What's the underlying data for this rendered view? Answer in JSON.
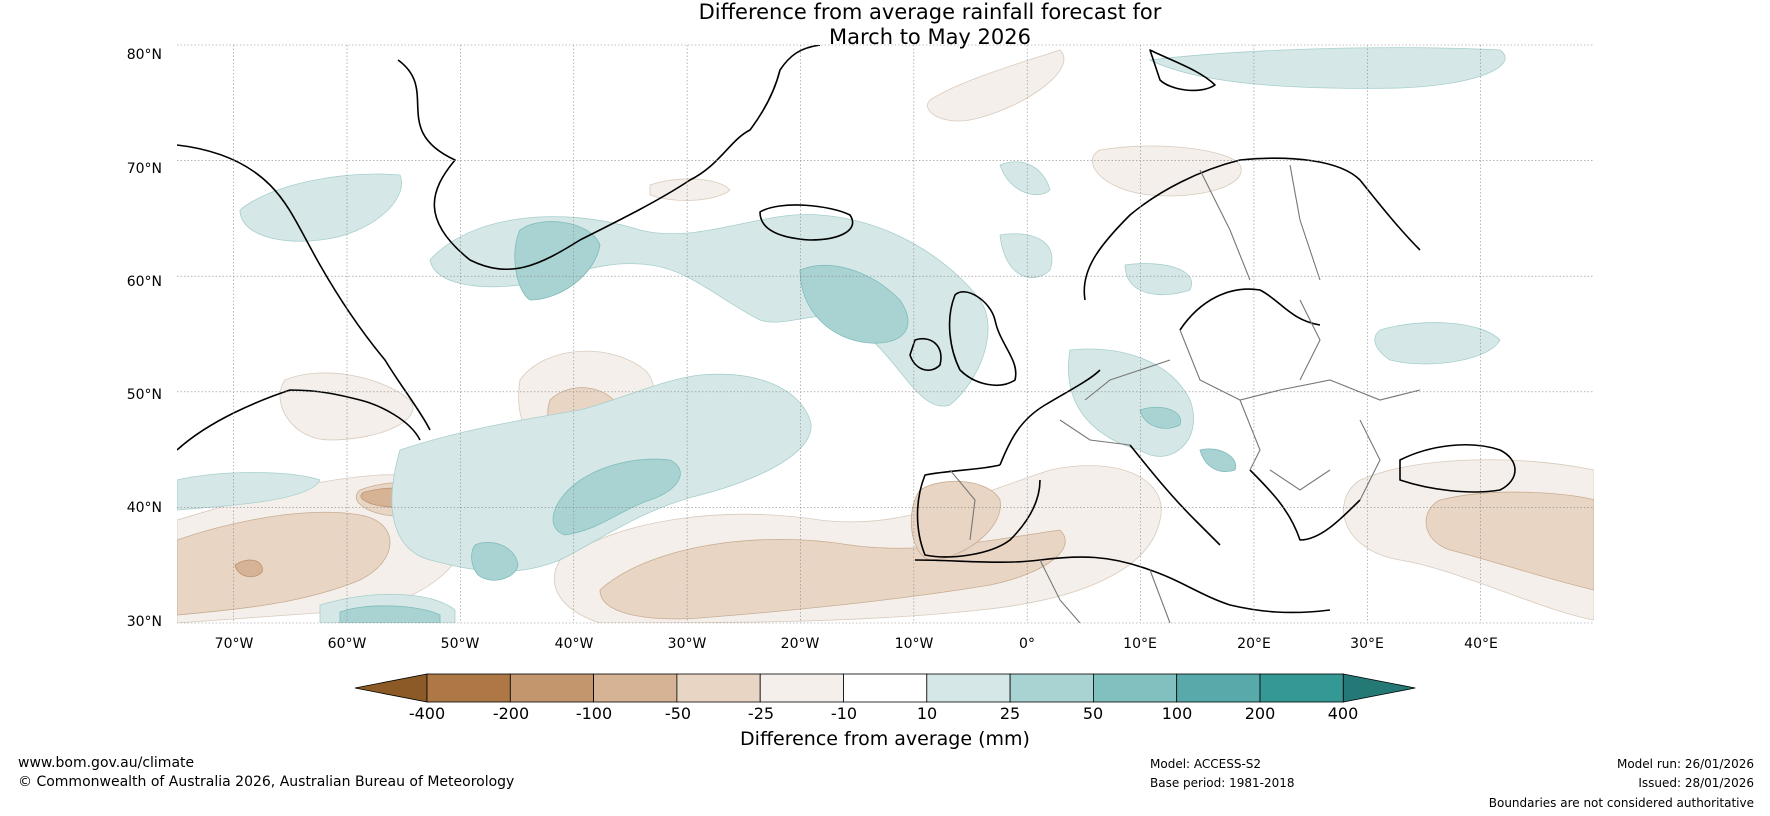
{
  "title": {
    "line1": "Difference from average rainfall forecast for",
    "line2": "March to May 2026"
  },
  "map": {
    "region": "North Atlantic and Europe",
    "lat_range": [
      30,
      80
    ],
    "lon_range": [
      -75,
      50
    ],
    "lat_ticks": [
      "30°N",
      "40°N",
      "50°N",
      "60°N",
      "70°N",
      "80°N"
    ],
    "lon_ticks": [
      "70°W",
      "60°W",
      "50°W",
      "40°W",
      "30°W",
      "20°W",
      "10°W",
      "0°",
      "10°E",
      "20°E",
      "30°E",
      "40°E"
    ],
    "gridlines": true
  },
  "colorbar": {
    "label": "Difference from average (mm)",
    "ticks": [
      "-400",
      "-200",
      "-100",
      "-50",
      "-25",
      "-10",
      "10",
      "25",
      "50",
      "100",
      "200",
      "400"
    ],
    "colors": [
      "#8b5a26",
      "#ae7846",
      "#c3966d",
      "#d6b394",
      "#e8d5c4",
      "#f4efea",
      "#ffffff",
      "#d5e8e7",
      "#a9d3d3",
      "#80c0bf",
      "#58aaaa",
      "#349895",
      "#247876"
    ]
  },
  "footer": {
    "website": "www.bom.gov.au/climate",
    "copyright": "© Commonwealth of Australia 2026, Australian Bureau of Meteorology",
    "model": "Model: ACCESS-S2",
    "base_period": "Base period: 1981-2018",
    "model_run": "Model run: 26/01/2026",
    "issued": "Issued: 28/01/2026",
    "disclaimer": "Boundaries are not considered authoritative"
  }
}
